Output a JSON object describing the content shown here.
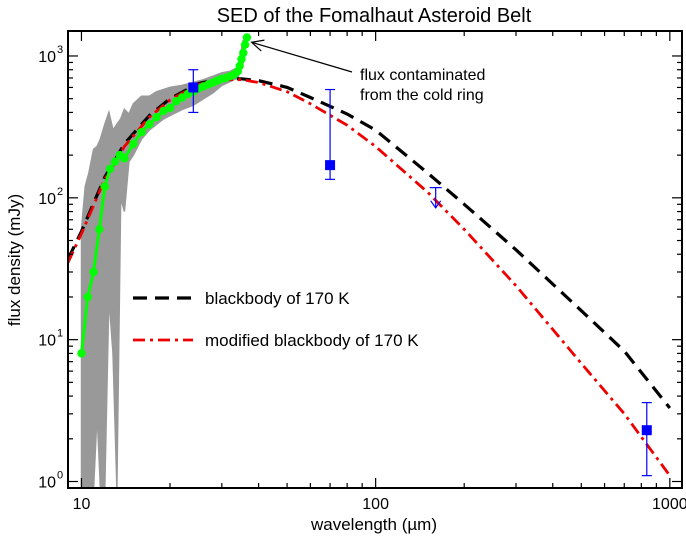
{
  "chart_data": {
    "type": "line",
    "title": "SED of the Fomalhaut Asteroid Belt",
    "xlabel": "wavelength (µm)",
    "ylabel": "flux density (mJy)",
    "xscale": "log",
    "yscale": "log",
    "xlim": [
      9,
      1100
    ],
    "ylim": [
      0.9,
      1500
    ],
    "x_ticks": [
      10,
      100,
      1000
    ],
    "x_tick_labels": [
      "10",
      "100",
      "1000"
    ],
    "y_ticks": [
      1,
      10,
      100,
      1000
    ],
    "y_tick_labels": [
      "10",
      "10",
      "10",
      "10"
    ],
    "y_tick_exponents": [
      "0",
      "1",
      "2",
      "3"
    ],
    "grid": false,
    "legend_position": "middle-left",
    "colors": {
      "spectrum_envelope": "#999999",
      "spectrum": "#00ff00",
      "photometry": "#0000ff",
      "blackbody": "#000000",
      "modified_blackbody": "#ee0000"
    },
    "series": [
      {
        "name": "blackbody of 170 K",
        "style": "dashed",
        "x": [
          9,
          10,
          12,
          14,
          17,
          20,
          25,
          30,
          35,
          40,
          50,
          60,
          80,
          100,
          150,
          200,
          300,
          500,
          700,
          1000
        ],
        "y": [
          37,
          58,
          140,
          240,
          380,
          500,
          640,
          690,
          690,
          670,
          600,
          510,
          390,
          300,
          150,
          90,
          43,
          16,
          8.3,
          3.3
        ]
      },
      {
        "name": "modified blackbody of 170 K",
        "style": "dash-dot",
        "x": [
          9,
          10,
          12,
          14,
          17,
          20,
          25,
          30,
          35,
          40,
          50,
          60,
          80,
          100,
          150,
          200,
          300,
          500,
          700,
          1000
        ],
        "y": [
          35,
          56,
          135,
          230,
          370,
          490,
          630,
          680,
          680,
          650,
          560,
          460,
          325,
          230,
          110,
          60,
          24,
          6.8,
          3.0,
          1.1
        ]
      },
      {
        "name": "",
        "style": "spectrum-green",
        "x": [
          10.0,
          10.5,
          11.0,
          11.5,
          12.0,
          12.5,
          13.0,
          13.5,
          14.0,
          15.0,
          16.0,
          17.0,
          18.0,
          19.0,
          20.0,
          21.0,
          22.0,
          23.0,
          24.0,
          25.0,
          26.0,
          27.0,
          28.0,
          29.0,
          30.0,
          31.0,
          32.0,
          33.0,
          34.0,
          34.5,
          35.0,
          35.5,
          36.0,
          36.5
        ],
        "y": [
          8.0,
          20,
          30,
          60,
          120,
          160,
          180,
          200,
          190,
          240,
          290,
          330,
          370,
          410,
          430,
          480,
          510,
          540,
          560,
          590,
          610,
          630,
          650,
          670,
          690,
          700,
          720,
          740,
          780,
          850,
          950,
          1050,
          1200,
          1350
        ]
      }
    ],
    "envelope": {
      "x": [
        10.0,
        10.3,
        10.6,
        11.0,
        11.3,
        11.6,
        12.0,
        12.4,
        12.8,
        13.2,
        13.6,
        14.0,
        14.5,
        15.0,
        16.0,
        17.0,
        18.0,
        19.0,
        20.0,
        22.0,
        24.0,
        26.0,
        28.0,
        30.0,
        32.0,
        34.0,
        35.5
      ],
      "upper": [
        60,
        120,
        150,
        220,
        230,
        260,
        330,
        400,
        300,
        330,
        360,
        420,
        390,
        460,
        520,
        520,
        560,
        580,
        600,
        620,
        650,
        680,
        720,
        760,
        780,
        830,
        1300
      ],
      "lower": [
        0.9,
        0.9,
        0.9,
        0.9,
        3.0,
        0.9,
        0.9,
        20,
        8,
        0.9,
        100,
        80,
        180,
        200,
        260,
        300,
        330,
        360,
        380,
        420,
        450,
        500,
        550,
        620,
        660,
        700,
        900
      ]
    },
    "photometry": [
      {
        "x": 24,
        "y": 600,
        "y_low": 400,
        "y_high": 800
      },
      {
        "x": 70,
        "y": 170,
        "y_low": 135,
        "y_high": 580
      },
      {
        "x": 835,
        "y": 2.3,
        "y_low": 1.1,
        "y_high": 3.6
      }
    ],
    "upper_limit": {
      "x": 160,
      "y": 118,
      "arrow_to": 85
    },
    "annotation": {
      "lines": [
        "flux contaminated",
        "from the cold ring"
      ],
      "points_to": {
        "x": 37,
        "y": 1250
      }
    }
  }
}
